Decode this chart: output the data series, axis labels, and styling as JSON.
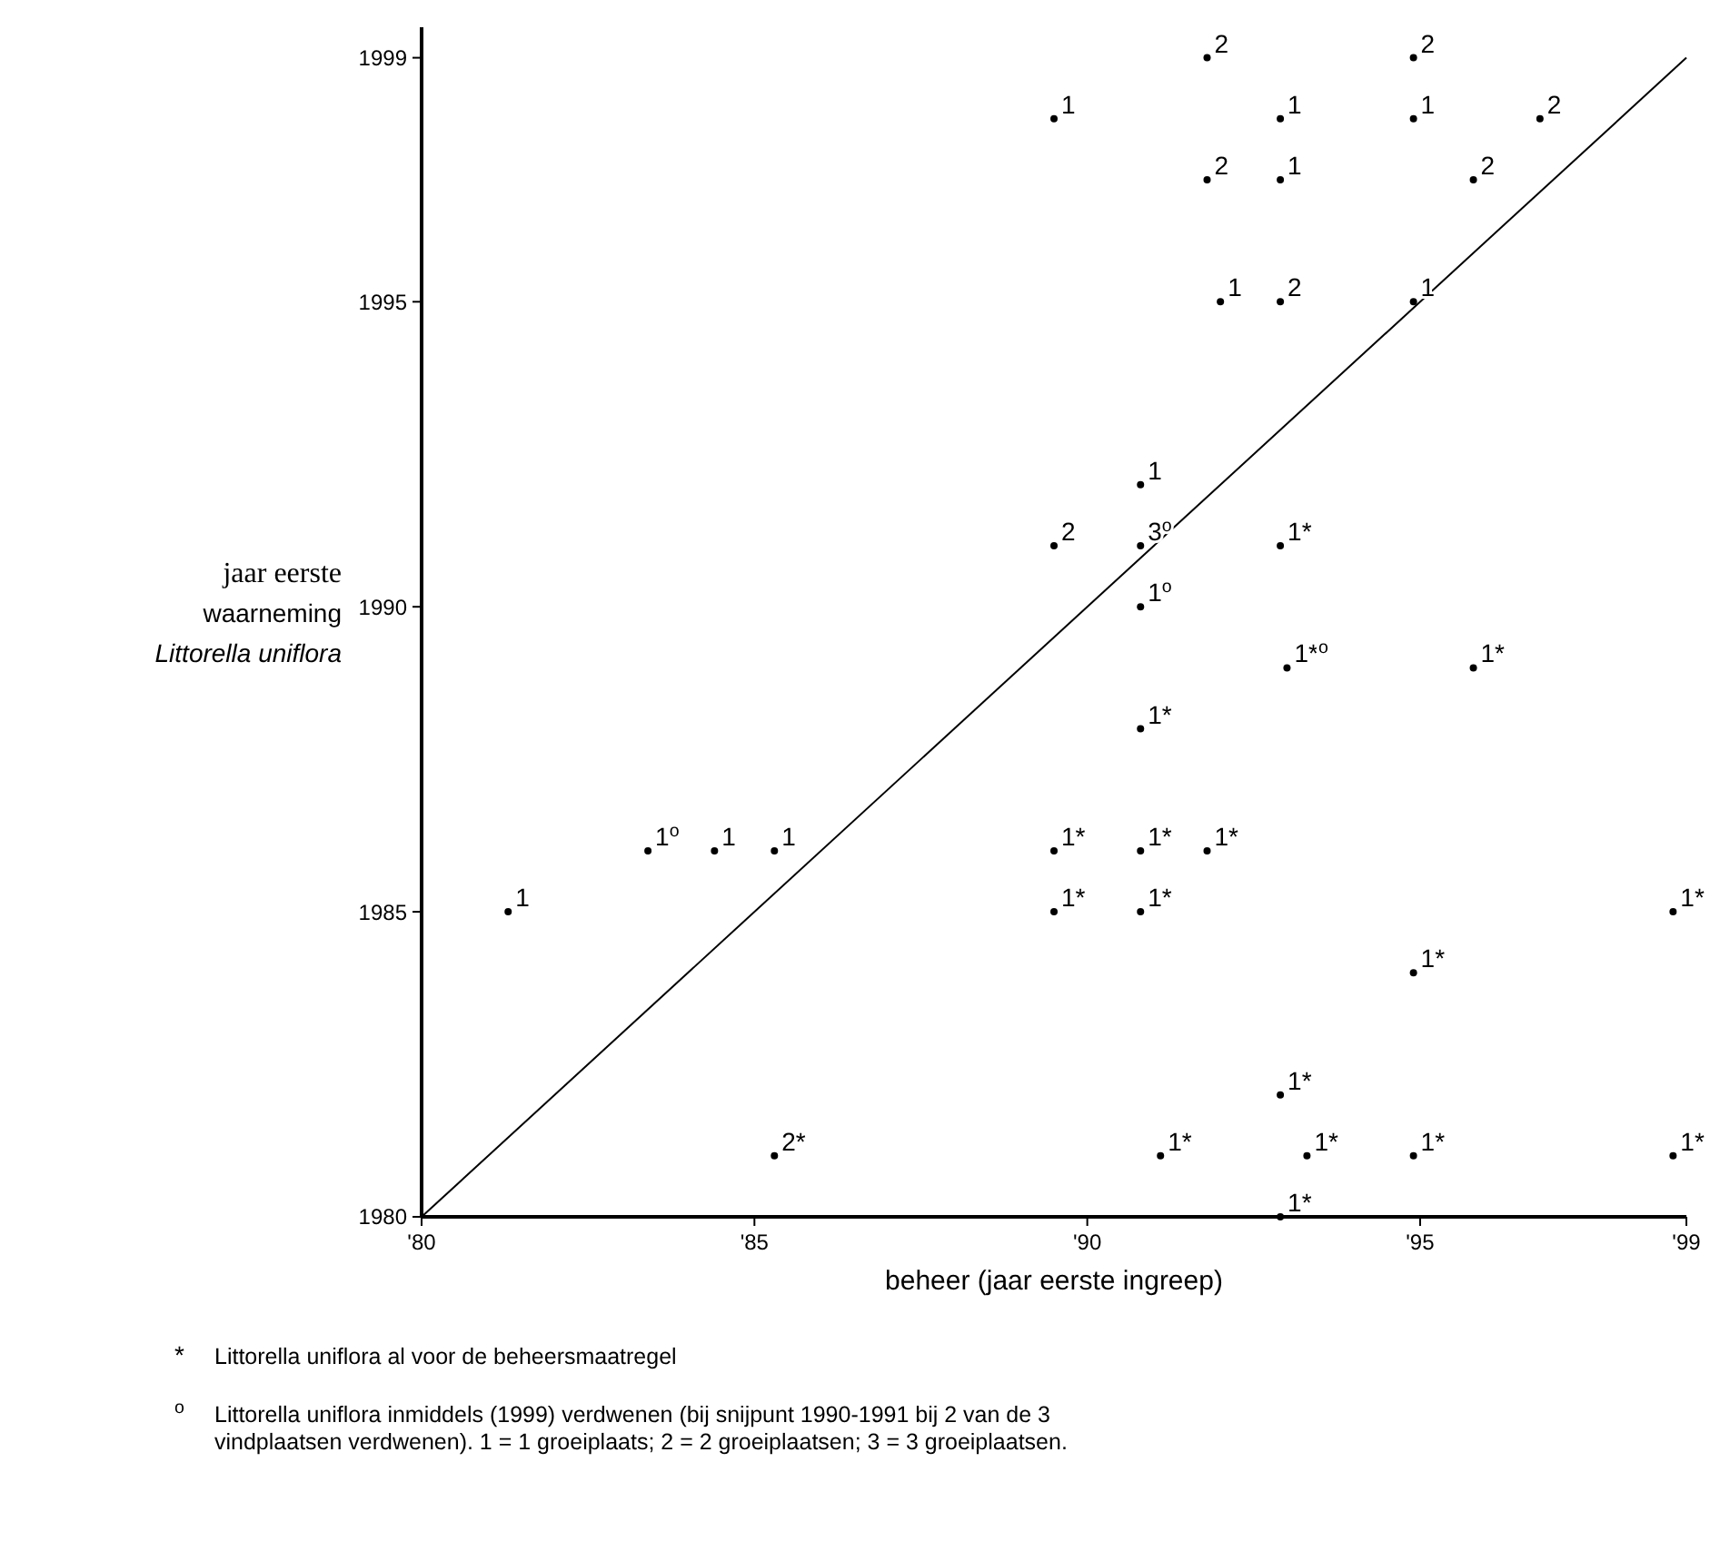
{
  "chart_data": {
    "type": "scatter",
    "xlabel": "beheer (jaar eerste ingreep)",
    "ylabel": "jaar eerste\nwaarneming\nLittorella uniflora",
    "xlim": [
      1980,
      1999
    ],
    "ylim": [
      1980,
      1999.5
    ],
    "xticks": [
      {
        "value": 1980,
        "label": "'80"
      },
      {
        "value": 1985,
        "label": "'85"
      },
      {
        "value": 1990,
        "label": "'90"
      },
      {
        "value": 1995,
        "label": "'95"
      },
      {
        "value": 1999,
        "label": "'99"
      }
    ],
    "yticks": [
      1980,
      1985,
      1990,
      1995,
      1999
    ],
    "grid": false,
    "series": [
      {
        "x": [
          1991.8,
          1994.9,
          1989.5,
          1992.9,
          1994.9,
          1996.8,
          1991.8,
          1992.9,
          1995.8,
          1992,
          1992.9,
          1994.9,
          1990.8,
          1989.5,
          1990.8,
          1992.9,
          1990.8,
          1993,
          1995.8,
          1990.8,
          1983.4,
          1984.4,
          1985.3,
          1989.5,
          1990.8,
          1991.8,
          1981.3,
          1989.5,
          1990.8,
          1998.8,
          1994.9,
          1992.9,
          1985.3,
          1991.1,
          1993.3,
          1994.9,
          1998.8,
          1992.9
        ],
        "values": [
          1999,
          1999,
          1998,
          1998,
          1998,
          1998,
          1997,
          1997,
          1997,
          1995,
          1995,
          1995,
          1992,
          1991,
          1991,
          1991,
          1990,
          1989,
          1989,
          1988,
          1986,
          1986,
          1986,
          1986,
          1986,
          1986,
          1985,
          1985,
          1985,
          1985,
          1984,
          1982,
          1981,
          1981,
          1981,
          1981,
          1981,
          1980
        ],
        "color": "#000000",
        "marker": "circle"
      },
      {
        "type": "line",
        "x": [
          1980,
          1999
        ],
        "values": [
          1980,
          1999
        ],
        "color": "#000000",
        "line_style": "solid"
      }
    ],
    "annotations": [
      {
        "text": "2",
        "x": 1991.8,
        "y": 1999
      },
      {
        "text": "2",
        "x": 1994.9,
        "y": 1999
      },
      {
        "text": "1",
        "x": 1989.5,
        "y": 1998
      },
      {
        "text": "1",
        "x": 1992.9,
        "y": 1998
      },
      {
        "text": "1",
        "x": 1994.9,
        "y": 1998
      },
      {
        "text": "2",
        "x": 1996.8,
        "y": 1998
      },
      {
        "text": "2",
        "x": 1991.8,
        "y": 1997
      },
      {
        "text": "1",
        "x": 1992.9,
        "y": 1997
      },
      {
        "text": "2",
        "x": 1995.8,
        "y": 1997
      },
      {
        "text": "1",
        "x": 1992,
        "y": 1995
      },
      {
        "text": "2",
        "x": 1992.9,
        "y": 1995
      },
      {
        "text": "1",
        "x": 1994.9,
        "y": 1995
      },
      {
        "text": "1",
        "x": 1990.8,
        "y": 1992
      },
      {
        "text": "2",
        "x": 1989.5,
        "y": 1991
      },
      {
        "text": "3$^{o}$",
        "x": 1990.8,
        "y": 1991
      },
      {
        "text": "1*",
        "x": 1992.9,
        "y": 1991
      },
      {
        "text": "1$^{o}$",
        "x": 1990.8,
        "y": 1990
      },
      {
        "text": "1*$^{o}$",
        "x": 1993,
        "y": 1989
      },
      {
        "text": "1*",
        "x": 1995.8,
        "y": 1989
      },
      {
        "text": "1*",
        "x": 1990.8,
        "y": 1988
      },
      {
        "text": "1$^{o}$",
        "x": 1983.4,
        "y": 1986
      },
      {
        "text": "1",
        "x": 1984.4,
        "y": 1986
      },
      {
        "text": "1",
        "x": 1985.3,
        "y": 1986
      },
      {
        "text": "1*",
        "x": 1989.5,
        "y": 1986
      },
      {
        "text": "1*",
        "x": 1990.8,
        "y": 1986
      },
      {
        "text": "1*",
        "x": 1991.8,
        "y": 1986
      },
      {
        "text": "1",
        "x": 1981.3,
        "y": 1985
      },
      {
        "text": "1*",
        "x": 1989.5,
        "y": 1985
      },
      {
        "text": "1*",
        "x": 1990.8,
        "y": 1985
      },
      {
        "text": "1*",
        "x": 1998.8,
        "y": 1985
      },
      {
        "text": "1*",
        "x": 1994.9,
        "y": 1984
      },
      {
        "text": "1*",
        "x": 1992.9,
        "y": 1982
      },
      {
        "text": "2*",
        "x": 1985.3,
        "y": 1981
      },
      {
        "text": "1*",
        "x": 1991.1,
        "y": 1981
      },
      {
        "text": "1*",
        "x": 1993.3,
        "y": 1981
      },
      {
        "text": "1*",
        "x": 1994.9,
        "y": 1981
      },
      {
        "text": "1*",
        "x": 1998.8,
        "y": 1981
      },
      {
        "text": "1*",
        "x": 1992.9,
        "y": 1980
      },
      "*\tLittorella uniflora al voor de beheersmaatregel",
      "$^{o}$\tLittorella uniflora inmiddels (1999) verdwenen (bij snijpunt 1990-1991 bij 2 van de 3 vindplaatsen verdwenen). 1 = 1 groeiplaats; 2 = 2 groeiplaatsen; 3 = 3 groeiplaatsen."
    ]
  }
}
